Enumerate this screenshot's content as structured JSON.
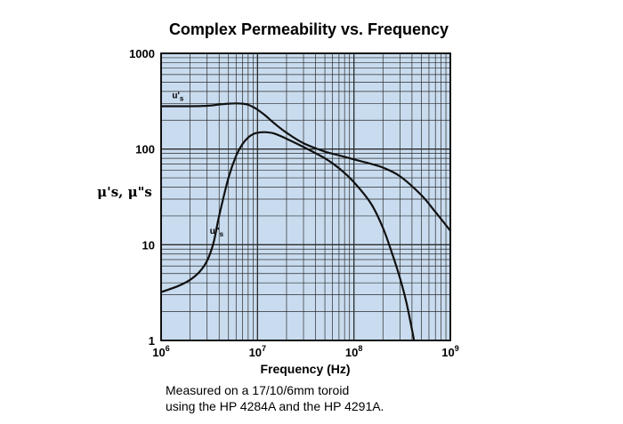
{
  "chart_data": {
    "type": "line",
    "title": "Complex Permeability vs. Frequency",
    "xlabel": "Frequency (Hz)",
    "ylabel": "μ's, μ\"s",
    "xscale": "log",
    "yscale": "log",
    "xlim": [
      1000000,
      1000000000
    ],
    "ylim": [
      1,
      1000
    ],
    "grid": true,
    "x_ticks": [
      {
        "value": 1000000,
        "base": "10",
        "exp": "6"
      },
      {
        "value": 10000000,
        "base": "10",
        "exp": "7"
      },
      {
        "value": 100000000,
        "base": "10",
        "exp": "8"
      },
      {
        "value": 1000000000,
        "base": "10",
        "exp": "9"
      }
    ],
    "y_ticks": [
      {
        "value": 1,
        "label": "1"
      },
      {
        "value": 10,
        "label": "10"
      },
      {
        "value": 100,
        "label": "100"
      },
      {
        "value": 1000,
        "label": "1000"
      }
    ],
    "colors": {
      "plot_bg": "#c9dcef",
      "grid": "#2b2b2b",
      "line": "#111111"
    },
    "series": [
      {
        "name": "μ's",
        "label_base": "u'",
        "label_sub": "s",
        "label_at": {
          "x": 1300000,
          "y": 340
        },
        "x": [
          1000000,
          1500000,
          2000000,
          2500000,
          3000000,
          3500000,
          4000000,
          5000000,
          6000000,
          7000000,
          8000000,
          9000000,
          10000000,
          12000000,
          15000000,
          20000000,
          30000000,
          50000000,
          70000000,
          100000000,
          150000000,
          200000000,
          300000000,
          500000000,
          700000000,
          1000000000
        ],
        "values": [
          280,
          280,
          280,
          281,
          283,
          287,
          292,
          298,
          300,
          298,
          290,
          275,
          258,
          225,
          185,
          148,
          115,
          94,
          86,
          78,
          70,
          64,
          52,
          33,
          22,
          14
        ]
      },
      {
        "name": "μ\"s",
        "label_base": "u\"",
        "label_sub": "s",
        "label_at": {
          "x": 3200000,
          "y": 13
        },
        "x": [
          1000000,
          1500000,
          2000000,
          2500000,
          3000000,
          3500000,
          4000000,
          5000000,
          6000000,
          7000000,
          8000000,
          9000000,
          10000000,
          12000000,
          15000000,
          20000000,
          30000000,
          50000000,
          70000000,
          100000000,
          150000000,
          200000000,
          250000000,
          300000000,
          350000000,
          400000000,
          420000000
        ],
        "values": [
          3.2,
          3.7,
          4.3,
          5.2,
          6.8,
          10.5,
          20,
          50,
          85,
          113,
          132,
          143,
          148,
          150,
          145,
          128,
          105,
          80,
          63,
          45,
          27,
          15,
          8,
          4.5,
          2.5,
          1.3,
          1
        ]
      }
    ]
  },
  "note": {
    "line1": "Measured on a 17/10/6mm toroid",
    "line2": "using the HP 4284A and the HP 4291A."
  }
}
